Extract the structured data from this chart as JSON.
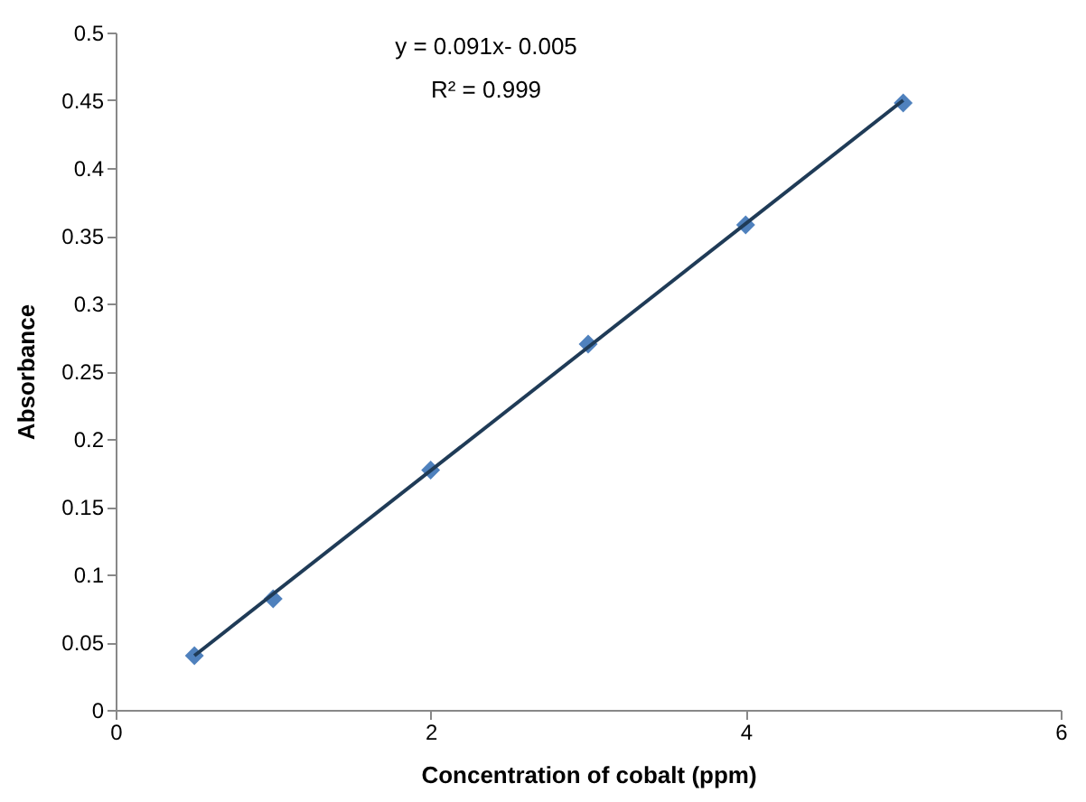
{
  "chart_data": {
    "type": "scatter",
    "xlabel": "Concentration of cobalt  (ppm)",
    "ylabel": "Absorbance",
    "annotations": [
      "y = 0.091x- 0.005",
      "R² = 0.999"
    ],
    "xlim": [
      0,
      6
    ],
    "xticks": [
      0,
      2,
      4,
      6
    ],
    "ylim": [
      0,
      0.5
    ],
    "yticks": [
      0,
      0.05,
      0.1,
      0.15,
      0.2,
      0.25,
      0.3,
      0.35,
      0.4,
      0.45,
      0.5
    ],
    "grid": false,
    "marker": "diamond",
    "series": [
      {
        "color": "#4f81bd",
        "x": [
          0.5,
          1,
          2,
          3,
          4,
          5
        ],
        "values": [
          0.04,
          0.082,
          0.177,
          0.27,
          0.358,
          0.448
        ]
      },
      {
        "type": "line",
        "color": "#1f3b57",
        "marker": "none",
        "x": [
          0.5,
          5
        ],
        "values": [
          0.04,
          0.45
        ]
      }
    ]
  }
}
